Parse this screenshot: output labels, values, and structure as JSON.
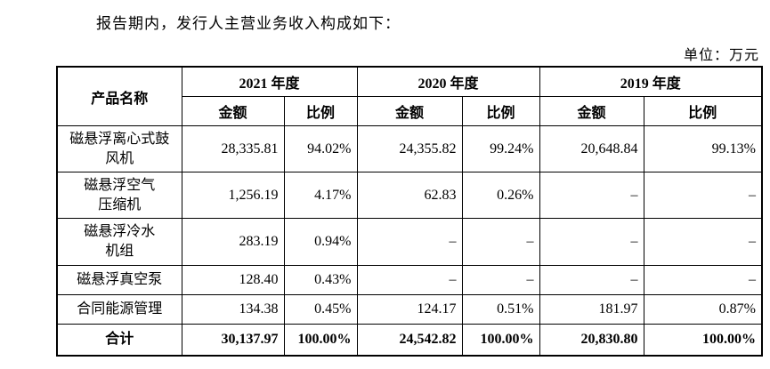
{
  "intro": "报告期内，发行人主营业务收入构成如下：",
  "unit_label": "单位：万元",
  "table": {
    "header": {
      "product": "产品名称",
      "years": [
        "2021 年度",
        "2020 年度",
        "2019 年度"
      ],
      "amount_label": "金额",
      "ratio_label": "比例"
    },
    "rows": [
      {
        "name": "磁悬浮离心式鼓\n风机",
        "values": [
          "28,335.81",
          "94.02%",
          "24,355.82",
          "99.24%",
          "20,648.84",
          "99.13%"
        ]
      },
      {
        "name": "磁悬浮空气\n压缩机",
        "values": [
          "1,256.19",
          "4.17%",
          "62.83",
          "0.26%",
          "–",
          "–"
        ]
      },
      {
        "name": "磁悬浮冷水\n机组",
        "values": [
          "283.19",
          "0.94%",
          "–",
          "–",
          "–",
          "–"
        ]
      },
      {
        "name": "磁悬浮真空泵",
        "values": [
          "128.40",
          "0.43%",
          "–",
          "–",
          "–",
          "–"
        ]
      },
      {
        "name": "合同能源管理",
        "values": [
          "134.38",
          "0.45%",
          "124.17",
          "0.51%",
          "181.97",
          "0.87%"
        ]
      }
    ],
    "total": {
      "name": "合计",
      "values": [
        "30,137.97",
        "100.00%",
        "24,542.82",
        "100.00%",
        "20,830.80",
        "100.00%"
      ]
    }
  }
}
